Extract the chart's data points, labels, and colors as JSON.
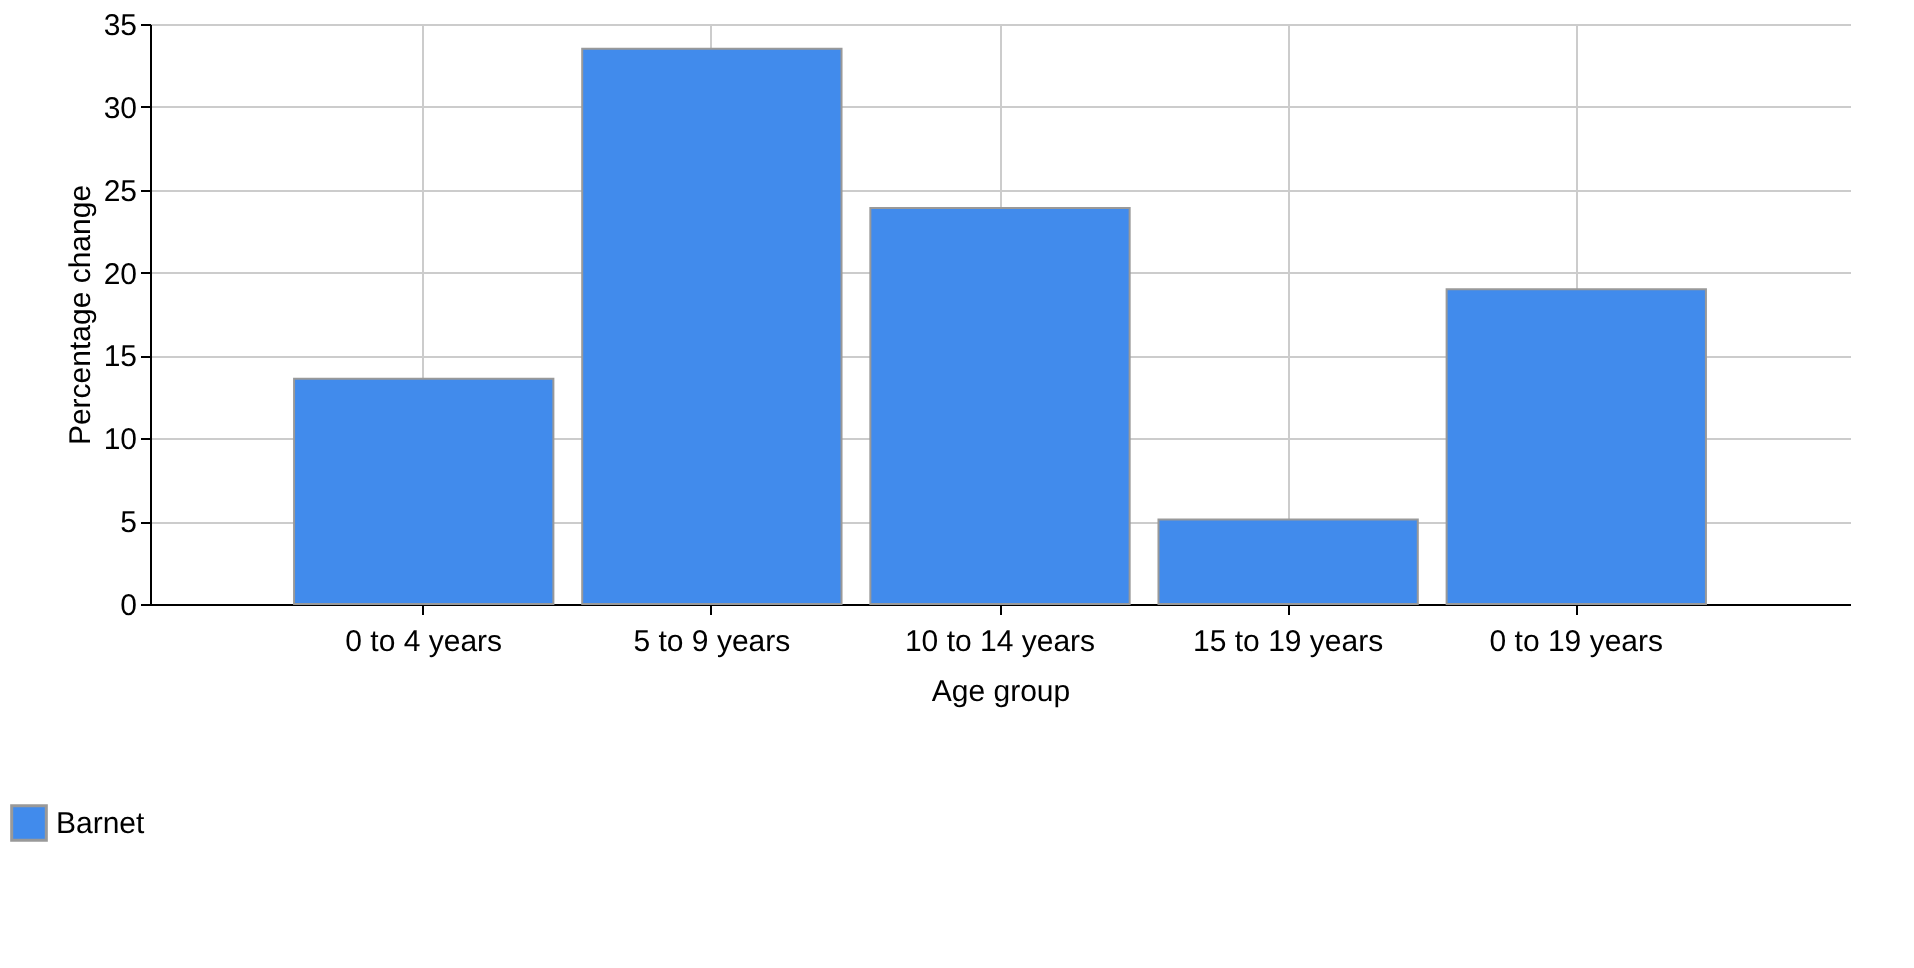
{
  "chart_data": {
    "type": "bar",
    "xlabel": "Age group",
    "ylabel": "Percentage change",
    "categories": [
      "0 to 4 years",
      "5 to 9 years",
      "10 to 14 years",
      "15 to 19 years",
      "0 to 19 years"
    ],
    "series": [
      {
        "name": "Barnet",
        "color": "#418bec",
        "values": [
          13.6,
          33.5,
          23.9,
          5.1,
          19.0
        ]
      }
    ],
    "ylim": [
      0,
      35
    ],
    "yticks": [
      0,
      5,
      10,
      15,
      20,
      25,
      30,
      35
    ],
    "grid": true,
    "legend": "bottom left"
  }
}
